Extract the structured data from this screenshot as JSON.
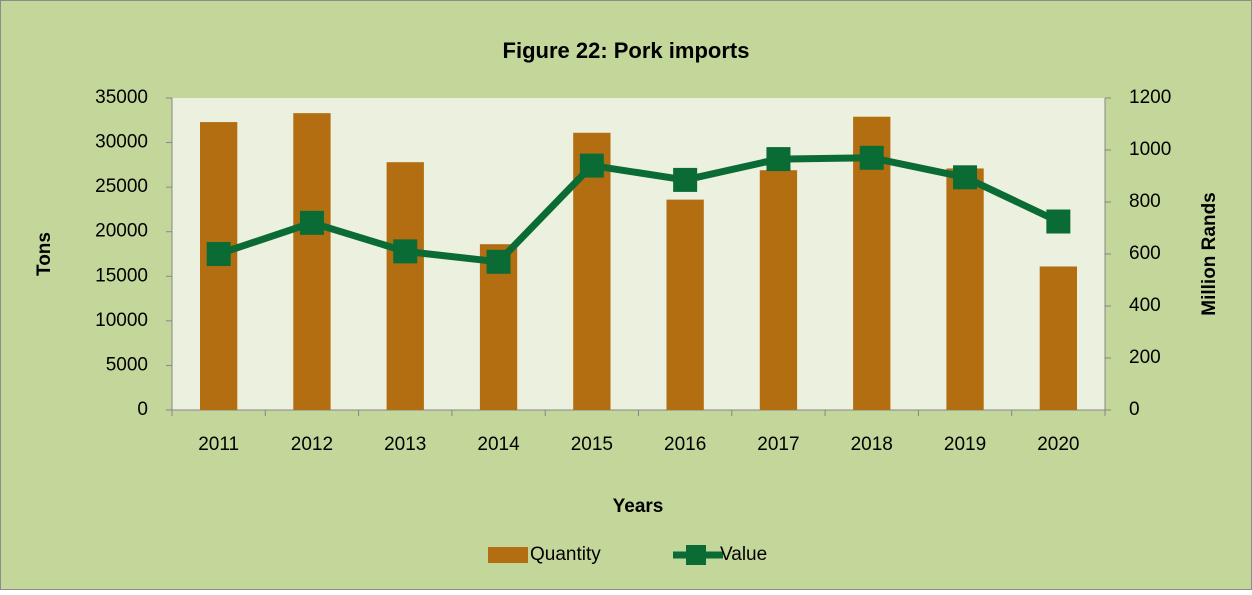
{
  "chart_data": {
    "type": "bar",
    "title": "Figure 22: Pork imports",
    "x_label": "Years",
    "y_label": "Tons",
    "y2_label": "Million Rands",
    "categories": [
      "2011",
      "2012",
      "2013",
      "2014",
      "2015",
      "2016",
      "2017",
      "2018",
      "2019",
      "2020"
    ],
    "series": [
      {
        "name": "Quantity",
        "type": "bar",
        "color": "#b46e12",
        "values": [
          32300,
          33300,
          27800,
          18600,
          31100,
          23600,
          26900,
          32900,
          27100,
          16100
        ]
      },
      {
        "name": "Value",
        "type": "line",
        "axis": "y2",
        "color": "#0b6b35",
        "values": [
          600,
          720,
          610,
          570,
          940,
          885,
          965,
          970,
          895,
          725
        ]
      }
    ],
    "ylim": [
      0,
      35000
    ],
    "yticks": [
      0,
      5000,
      10000,
      15000,
      20000,
      25000,
      30000,
      35000
    ],
    "y2lim": [
      0,
      1200
    ],
    "y2ticks": [
      0,
      200,
      400,
      600,
      800,
      1000,
      1200
    ],
    "legend": "bottom"
  }
}
